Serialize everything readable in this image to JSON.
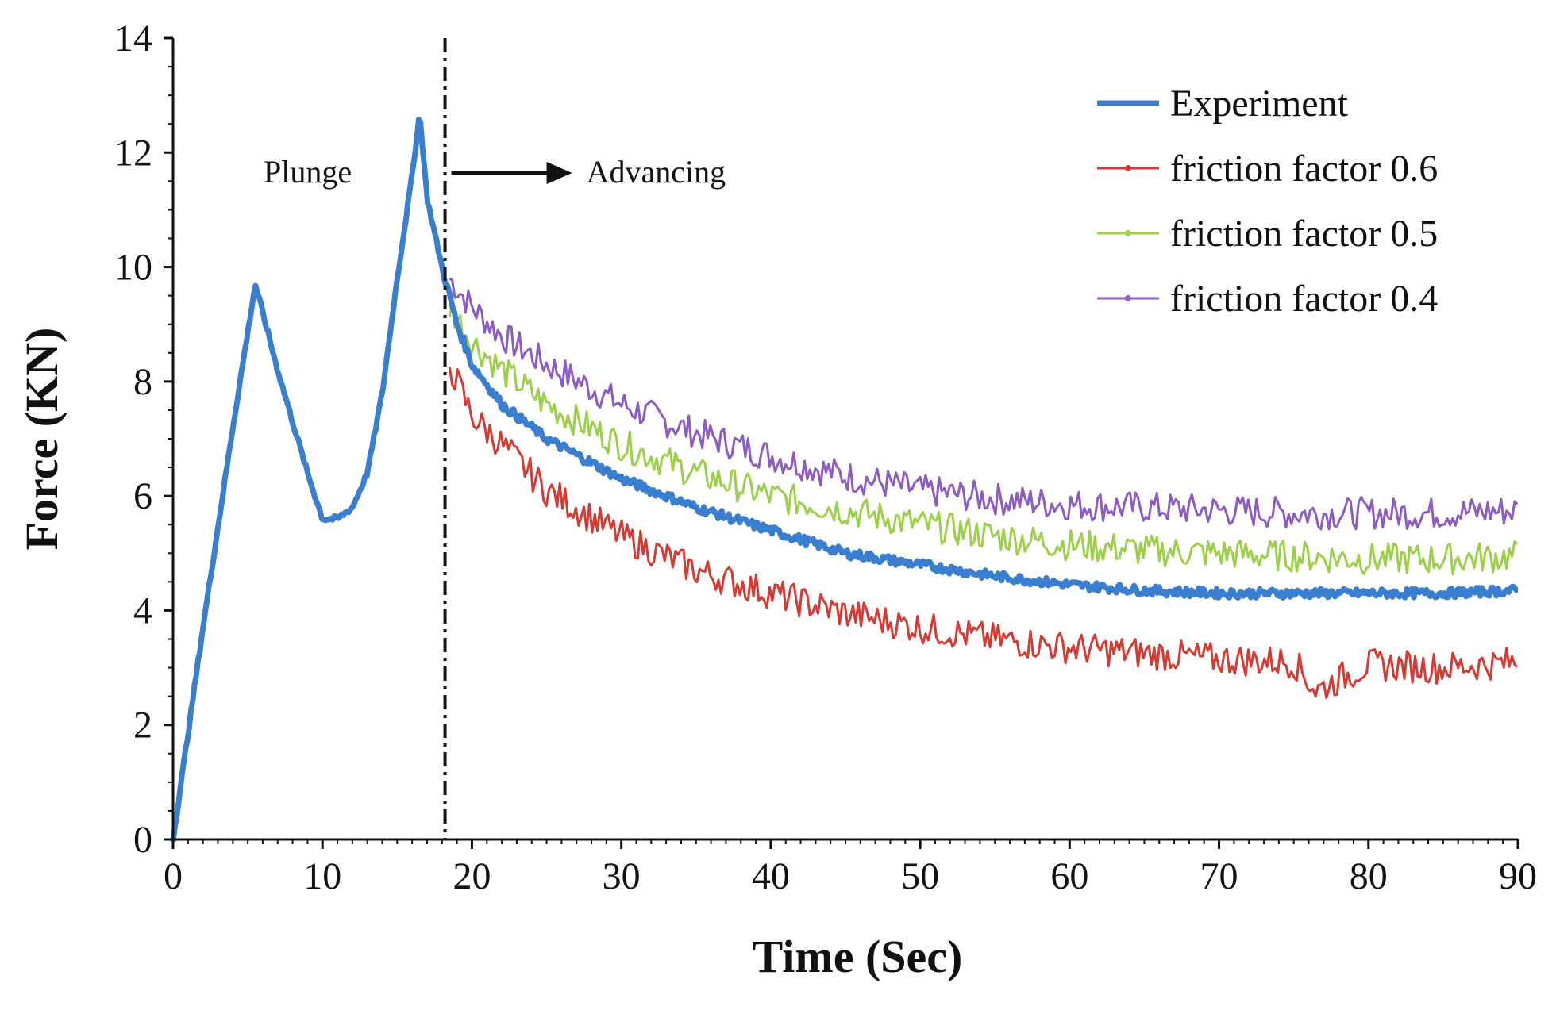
{
  "chart_data": {
    "type": "line",
    "title": "",
    "xlabel": "Time (Sec)",
    "ylabel": "Force (KN)",
    "xlim": [
      0,
      90
    ],
    "ylim": [
      0,
      14
    ],
    "xticks": [
      "0",
      "10",
      "20",
      "30",
      "40",
      "50",
      "60",
      "70",
      "80",
      "90"
    ],
    "yticks": [
      "0",
      "2",
      "4",
      "6",
      "8",
      "10",
      "12",
      "14"
    ],
    "grid": false,
    "legend_position": "top-right",
    "annotations": {
      "plunge_label": "Plunge",
      "advancing_label": "Advancing",
      "divider_x": 18.2
    },
    "series": [
      {
        "name": "Experiment",
        "color": "#3a7fcf",
        "x": [
          0,
          2,
          4,
          5.5,
          7,
          9,
          10,
          11,
          12,
          13,
          14,
          15,
          16,
          16.5,
          17,
          18,
          19,
          20,
          22,
          25,
          30,
          35,
          40,
          45,
          50,
          55,
          60,
          65,
          70,
          75,
          80,
          85,
          90
        ],
        "y": [
          0,
          3.7,
          7.2,
          9.7,
          8.2,
          6.4,
          5.6,
          5.6,
          5.8,
          6.4,
          7.8,
          9.8,
          11.6,
          12.7,
          11.2,
          10.0,
          9.0,
          8.3,
          7.6,
          7.0,
          6.3,
          5.8,
          5.4,
          5.0,
          4.8,
          4.6,
          4.45,
          4.35,
          4.3,
          4.3,
          4.3,
          4.3,
          4.35
        ]
      },
      {
        "name": "friction factor 0.6",
        "color": "#d63a32",
        "x": [
          18.5,
          20,
          22,
          25,
          30,
          35,
          40,
          45,
          50,
          55,
          60,
          65,
          70,
          75,
          76.5,
          80,
          85,
          90
        ],
        "y": [
          8.3,
          7.4,
          6.9,
          6.1,
          5.3,
          4.7,
          4.3,
          3.95,
          3.7,
          3.5,
          3.35,
          3.25,
          3.15,
          3.1,
          2.6,
          3.05,
          3.0,
          3.1
        ]
      },
      {
        "name": "friction factor 0.5",
        "color": "#9ccf4a",
        "x": [
          18.5,
          20,
          22,
          25,
          30,
          35,
          40,
          45,
          50,
          55,
          60,
          65,
          70,
          75,
          80,
          85,
          90
        ],
        "y": [
          9.3,
          8.7,
          8.2,
          7.6,
          6.9,
          6.4,
          6.0,
          5.75,
          5.5,
          5.3,
          5.15,
          5.05,
          5.0,
          4.95,
          4.9,
          4.9,
          4.95
        ]
      },
      {
        "name": "friction factor 0.4",
        "color": "#8c5cc4",
        "x": [
          18.5,
          20,
          22,
          25,
          30,
          35,
          40,
          45,
          50,
          55,
          60,
          65,
          70,
          75,
          80,
          85,
          90
        ],
        "y": [
          9.8,
          9.3,
          8.8,
          8.3,
          7.6,
          7.1,
          6.7,
          6.35,
          6.1,
          5.95,
          5.85,
          5.8,
          5.75,
          5.7,
          5.7,
          5.7,
          5.75
        ]
      }
    ]
  }
}
